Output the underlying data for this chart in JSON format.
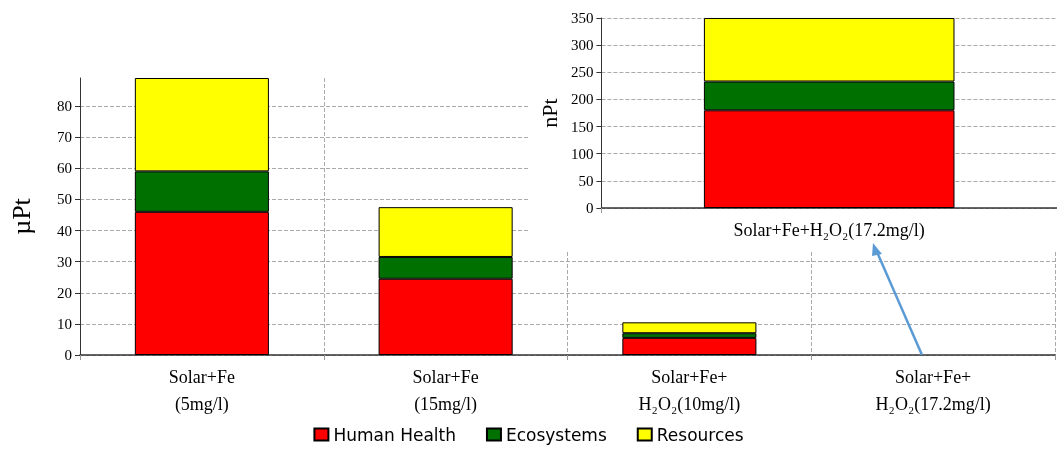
{
  "chart_data": [
    {
      "type": "bar",
      "ylabel": "µPt",
      "categories": [
        "Solar+Fe\n(5mg/l)",
        "Solar+Fe\n(15mg/l)",
        "Solar+Fe+\nH₂O₂(10mg/l)",
        "Solar+Fe+\nH₂O₂(17.2mg/l)"
      ],
      "stacked": true,
      "ylim": [
        0,
        89
      ],
      "yticks": [
        0,
        10,
        20,
        30,
        40,
        50,
        60,
        70,
        80
      ],
      "grid": true,
      "legend": "bottom",
      "series": [
        {
          "name": "Human Health",
          "color": "#ff0000",
          "values": [
            46,
            24.5,
            5.5,
            null
          ]
        },
        {
          "name": "Ecosystems",
          "color": "#007000",
          "values": [
            13,
            7,
            1.5,
            null
          ]
        },
        {
          "name": "Resources",
          "color": "#ffff00",
          "values": [
            30,
            16,
            3.5,
            null
          ]
        }
      ]
    },
    {
      "type": "bar",
      "ylabel": "nPt",
      "categories": [
        "Solar+Fe+H₂O₂(17.2mg/l)"
      ],
      "stacked": true,
      "ylim": [
        0,
        350
      ],
      "yticks": [
        0,
        50,
        100,
        150,
        200,
        250,
        300,
        350
      ],
      "grid": "y",
      "series": [
        {
          "color": "#ff0000",
          "values": [
            180
          ]
        },
        {
          "color": "#007000",
          "values": [
            53
          ]
        },
        {
          "color": "#ffff00",
          "values": [
            117
          ]
        }
      ]
    }
  ]
}
